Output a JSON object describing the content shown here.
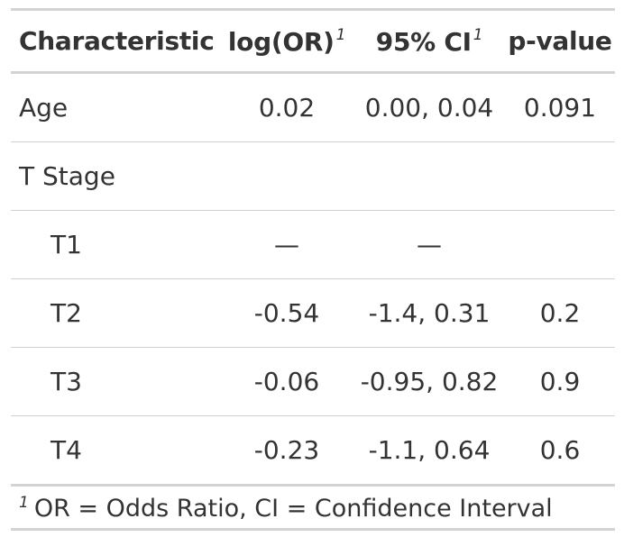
{
  "table": {
    "headers": {
      "characteristic": "Characteristic",
      "estimate": "log(OR)",
      "ci": "95% CI",
      "pvalue": "p-value",
      "footnote_marker": "1"
    },
    "rows": [
      {
        "label": "Age",
        "estimate": "0.02",
        "ci": "0.00, 0.04",
        "pvalue": "0.091"
      },
      {
        "label": "T Stage",
        "estimate": "",
        "ci": "",
        "pvalue": ""
      },
      {
        "label": "T1",
        "estimate": "—",
        "ci": "—",
        "pvalue": ""
      },
      {
        "label": "T2",
        "estimate": "-0.54",
        "ci": "-1.4, 0.31",
        "pvalue": "0.2"
      },
      {
        "label": "T3",
        "estimate": "-0.06",
        "ci": "-0.95, 0.82",
        "pvalue": "0.9"
      },
      {
        "label": "T4",
        "estimate": "-0.23",
        "ci": "-1.1, 0.64",
        "pvalue": "0.6"
      }
    ],
    "footnote": {
      "marker": "1",
      "text": "OR = Odds Ratio, CI = Confidence Interval"
    }
  }
}
